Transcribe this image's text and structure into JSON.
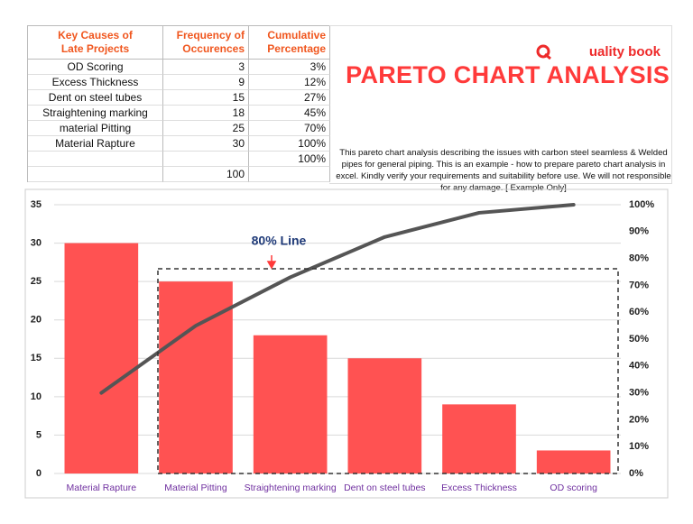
{
  "table": {
    "header": [
      "Key Causes of\nLate Projects",
      "Frequency of\nOccurences",
      "Cumulative\nPercentage"
    ],
    "rows": [
      [
        "OD Scoring",
        3,
        "3%"
      ],
      [
        "Excess Thickness",
        9,
        "12%"
      ],
      [
        "Dent on steel tubes",
        15,
        "27%"
      ],
      [
        "Straightening marking",
        18,
        "45%"
      ],
      [
        "material Pitting",
        25,
        "70%"
      ],
      [
        "Material Rapture",
        30,
        "100%"
      ],
      [
        null,
        null,
        "100%"
      ],
      [
        null,
        100,
        null
      ]
    ]
  },
  "logo": "uality book",
  "title": "PARETO CHART ANALYSIS",
  "description": "This pareto chart analysis describing the issues with carbon steel seamless & Welded pipes for general piping. This is an example - how to prepare pareto chart analysis in excel. Kindly verify your requirements and suitability before use. We will not responsible for any damage. [ Example Only]",
  "chart_data": {
    "type": "bar",
    "categories": [
      "Material Rapture",
      "Material Pitting",
      "Straightening marking",
      "Dent on steel tubes",
      "Excess Thickness",
      "OD scoring"
    ],
    "series": [
      {
        "type": "bar",
        "color": "#ff5252",
        "values": [
          30,
          25,
          18,
          15,
          9,
          3
        ]
      },
      {
        "type": "line",
        "color": "#555555",
        "axis": "y2",
        "values": [
          30,
          55,
          73,
          88,
          97,
          100
        ]
      }
    ],
    "ylim": [
      0,
      35
    ],
    "yticks": [
      0,
      5,
      10,
      15,
      20,
      25,
      30,
      35
    ],
    "y2lim": [
      0,
      100
    ],
    "y2ticks": [
      {
        "value": 0,
        "label": "0%"
      },
      {
        "value": 10,
        "label": "10%"
      },
      {
        "value": 20,
        "label": "20%"
      },
      {
        "value": 30,
        "label": "30%"
      },
      {
        "value": 40,
        "label": "40%"
      },
      {
        "value": 50,
        "label": "50%"
      },
      {
        "value": 60,
        "label": "60%"
      },
      {
        "value": 70,
        "label": "70%"
      },
      {
        "value": 80,
        "label": "80%"
      },
      {
        "value": 90,
        "label": "90%"
      },
      {
        "value": 100,
        "label": "100%"
      }
    ],
    "grid": true,
    "annotation": "80% Line",
    "category_color": "#7030a0"
  }
}
